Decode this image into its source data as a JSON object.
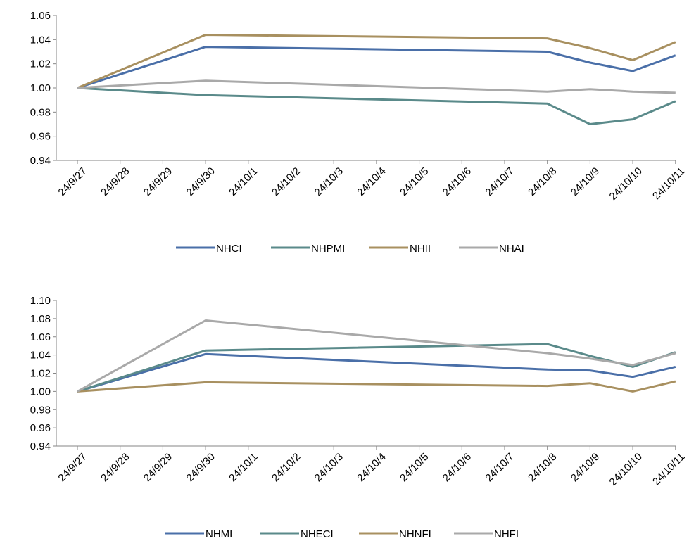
{
  "chart_data": [
    {
      "type": "line",
      "title": "",
      "xlabel": "",
      "ylabel": "",
      "ylim": [
        0.94,
        1.06
      ],
      "yticks": [
        "0.94",
        "0.96",
        "0.98",
        "1.00",
        "1.02",
        "1.04",
        "1.06"
      ],
      "categories": [
        "24/9/27",
        "24/9/28",
        "24/9/29",
        "24/9/30",
        "24/10/1",
        "24/10/2",
        "24/10/3",
        "24/10/4",
        "24/10/5",
        "24/10/6",
        "24/10/7",
        "24/10/8",
        "24/10/9",
        "24/10/10",
        "24/10/11"
      ],
      "grid": false,
      "legend_position": "bottom",
      "series": [
        {
          "name": "NHCI",
          "color": "#4a6fa8",
          "points": [
            [
              "24/9/27",
              1.0
            ],
            [
              "24/9/30",
              1.034
            ],
            [
              "24/10/8",
              1.03
            ],
            [
              "24/10/9",
              1.021
            ],
            [
              "24/10/10",
              1.014
            ],
            [
              "24/10/11",
              1.027
            ]
          ]
        },
        {
          "name": "NHPMI",
          "color": "#5a8a8a",
          "points": [
            [
              "24/9/27",
              1.0
            ],
            [
              "24/9/30",
              0.994
            ],
            [
              "24/10/8",
              0.987
            ],
            [
              "24/10/9",
              0.97
            ],
            [
              "24/10/10",
              0.974
            ],
            [
              "24/10/11",
              0.989
            ]
          ]
        },
        {
          "name": "NHII",
          "color": "#a89060",
          "points": [
            [
              "24/9/27",
              1.0
            ],
            [
              "24/9/30",
              1.044
            ],
            [
              "24/10/8",
              1.041
            ],
            [
              "24/10/9",
              1.033
            ],
            [
              "24/10/10",
              1.023
            ],
            [
              "24/10/11",
              1.038
            ]
          ]
        },
        {
          "name": "NHAI",
          "color": "#a9a9a9",
          "points": [
            [
              "24/9/27",
              1.0
            ],
            [
              "24/9/30",
              1.006
            ],
            [
              "24/10/8",
              0.997
            ],
            [
              "24/10/9",
              0.999
            ],
            [
              "24/10/10",
              0.997
            ],
            [
              "24/10/11",
              0.996
            ]
          ]
        }
      ]
    },
    {
      "type": "line",
      "title": "",
      "xlabel": "",
      "ylabel": "",
      "ylim": [
        0.94,
        1.1
      ],
      "yticks": [
        "0.94",
        "0.96",
        "0.98",
        "1.00",
        "1.02",
        "1.04",
        "1.06",
        "1.08",
        "1.10"
      ],
      "categories": [
        "24/9/27",
        "24/9/28",
        "24/9/29",
        "24/9/30",
        "24/10/1",
        "24/10/2",
        "24/10/3",
        "24/10/4",
        "24/10/5",
        "24/10/6",
        "24/10/7",
        "24/10/8",
        "24/10/9",
        "24/10/10",
        "24/10/11"
      ],
      "grid": false,
      "legend_position": "bottom",
      "series": [
        {
          "name": "NHMI",
          "color": "#4a6fa8",
          "points": [
            [
              "24/9/27",
              1.0
            ],
            [
              "24/9/30",
              1.041
            ],
            [
              "24/10/8",
              1.024
            ],
            [
              "24/10/9",
              1.023
            ],
            [
              "24/10/10",
              1.016
            ],
            [
              "24/10/11",
              1.027
            ]
          ]
        },
        {
          "name": "NHECI",
          "color": "#5a8a8a",
          "points": [
            [
              "24/9/27",
              1.0
            ],
            [
              "24/9/30",
              1.045
            ],
            [
              "24/10/8",
              1.052
            ],
            [
              "24/10/9",
              1.039
            ],
            [
              "24/10/10",
              1.027
            ],
            [
              "24/10/11",
              1.043
            ]
          ]
        },
        {
          "name": "NHNFI",
          "color": "#a89060",
          "points": [
            [
              "24/9/27",
              1.0
            ],
            [
              "24/9/30",
              1.01
            ],
            [
              "24/10/8",
              1.006
            ],
            [
              "24/10/9",
              1.009
            ],
            [
              "24/10/10",
              1.0
            ],
            [
              "24/10/11",
              1.011
            ]
          ]
        },
        {
          "name": "NHFI",
          "color": "#a9a9a9",
          "points": [
            [
              "24/9/27",
              1.0
            ],
            [
              "24/9/30",
              1.078
            ],
            [
              "24/10/8",
              1.042
            ],
            [
              "24/10/9",
              1.036
            ],
            [
              "24/10/10",
              1.029
            ],
            [
              "24/10/11",
              1.042
            ]
          ]
        }
      ]
    }
  ]
}
